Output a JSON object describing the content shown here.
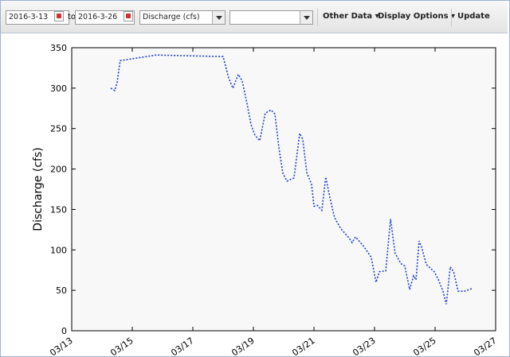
{
  "toolbar": {
    "start_date": "2016-3-13",
    "to_label": "to",
    "end_date": "2016-3-26",
    "parameter": "Discharge (cfs)",
    "menus": [
      "Other Data",
      "Display Options",
      "Update"
    ]
  },
  "chart_data": {
    "type": "line",
    "ylabel": "Discharge (cfs)",
    "color": "#1f3fd0",
    "x": [
      14.29,
      14.42,
      14.5,
      14.6,
      15.79,
      18.0,
      18.18,
      18.32,
      18.5,
      18.63,
      18.79,
      18.92,
      19.05,
      19.21,
      19.39,
      19.58,
      19.71,
      19.84,
      19.97,
      20.11,
      20.34,
      20.53,
      20.63,
      20.76,
      20.92,
      21.0,
      21.11,
      21.26,
      21.39,
      21.53,
      21.68,
      21.89,
      22.13,
      22.26,
      22.37,
      22.63,
      22.89,
      23.05,
      23.16,
      23.37,
      23.53,
      23.68,
      23.87,
      24.0,
      24.16,
      24.29,
      24.37,
      24.47,
      24.55,
      24.71,
      24.97,
      25.11,
      25.26,
      25.37,
      25.5,
      25.61,
      25.76,
      25.97,
      26.21
    ],
    "values": [
      300,
      297,
      307,
      334,
      341,
      339,
      313,
      300,
      317,
      309,
      281,
      255,
      242,
      235,
      269,
      273,
      268,
      227,
      195,
      185,
      189,
      244,
      237,
      196,
      181,
      154,
      155,
      149,
      190,
      164,
      140,
      126,
      116,
      109,
      116,
      105,
      91,
      60,
      73,
      74,
      138,
      96,
      83,
      80,
      51,
      68,
      63,
      111,
      104,
      82,
      73,
      63,
      49,
      33,
      79,
      73,
      49,
      49,
      52
    ],
    "xlim": [
      13,
      27
    ],
    "xticks": [
      {
        "value": 13,
        "label": "03/13"
      },
      {
        "value": 15,
        "label": "03/15"
      },
      {
        "value": 17,
        "label": "03/17"
      },
      {
        "value": 19,
        "label": "03/19"
      },
      {
        "value": 21,
        "label": "03/21"
      },
      {
        "value": 23,
        "label": "03/23"
      },
      {
        "value": 25,
        "label": "03/25"
      },
      {
        "value": 27,
        "label": "03/27"
      }
    ],
    "ylim": [
      0,
      350
    ],
    "yticks": [
      0,
      50,
      100,
      150,
      200,
      250,
      300,
      350
    ]
  }
}
